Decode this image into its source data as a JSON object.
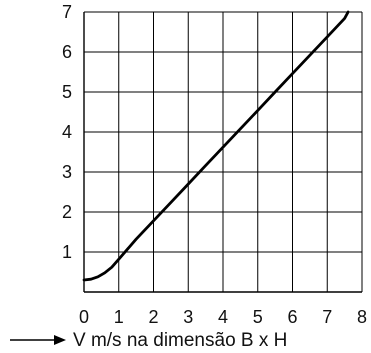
{
  "chart_data": {
    "type": "line",
    "title": "",
    "xlabel": "V m/s na dimensão B x H",
    "ylabel": "",
    "xlim": [
      0,
      8
    ],
    "ylim": [
      0,
      7
    ],
    "x_ticks": [
      "0",
      "1",
      "2",
      "3",
      "4",
      "5",
      "6",
      "7",
      "8"
    ],
    "y_ticks": [
      "1",
      "2",
      "3",
      "4",
      "5",
      "6",
      "7"
    ],
    "grid": true,
    "legend": "none",
    "series": [
      {
        "x": [
          0.0,
          0.2,
          0.4,
          0.6,
          0.8,
          0.9,
          1.0,
          1.5,
          2.0,
          2.5,
          3.0,
          3.5,
          4.0,
          4.5,
          5.0,
          5.5,
          6.0,
          6.5,
          7.0,
          7.5,
          7.6
        ],
        "y": [
          0.3,
          0.32,
          0.38,
          0.48,
          0.62,
          0.72,
          0.82,
          1.32,
          1.78,
          2.24,
          2.7,
          3.16,
          3.62,
          4.08,
          4.54,
          5.0,
          5.46,
          5.92,
          6.38,
          6.84,
          7.0
        ]
      }
    ],
    "line_color": "#000000",
    "grid_color": "#000000"
  }
}
